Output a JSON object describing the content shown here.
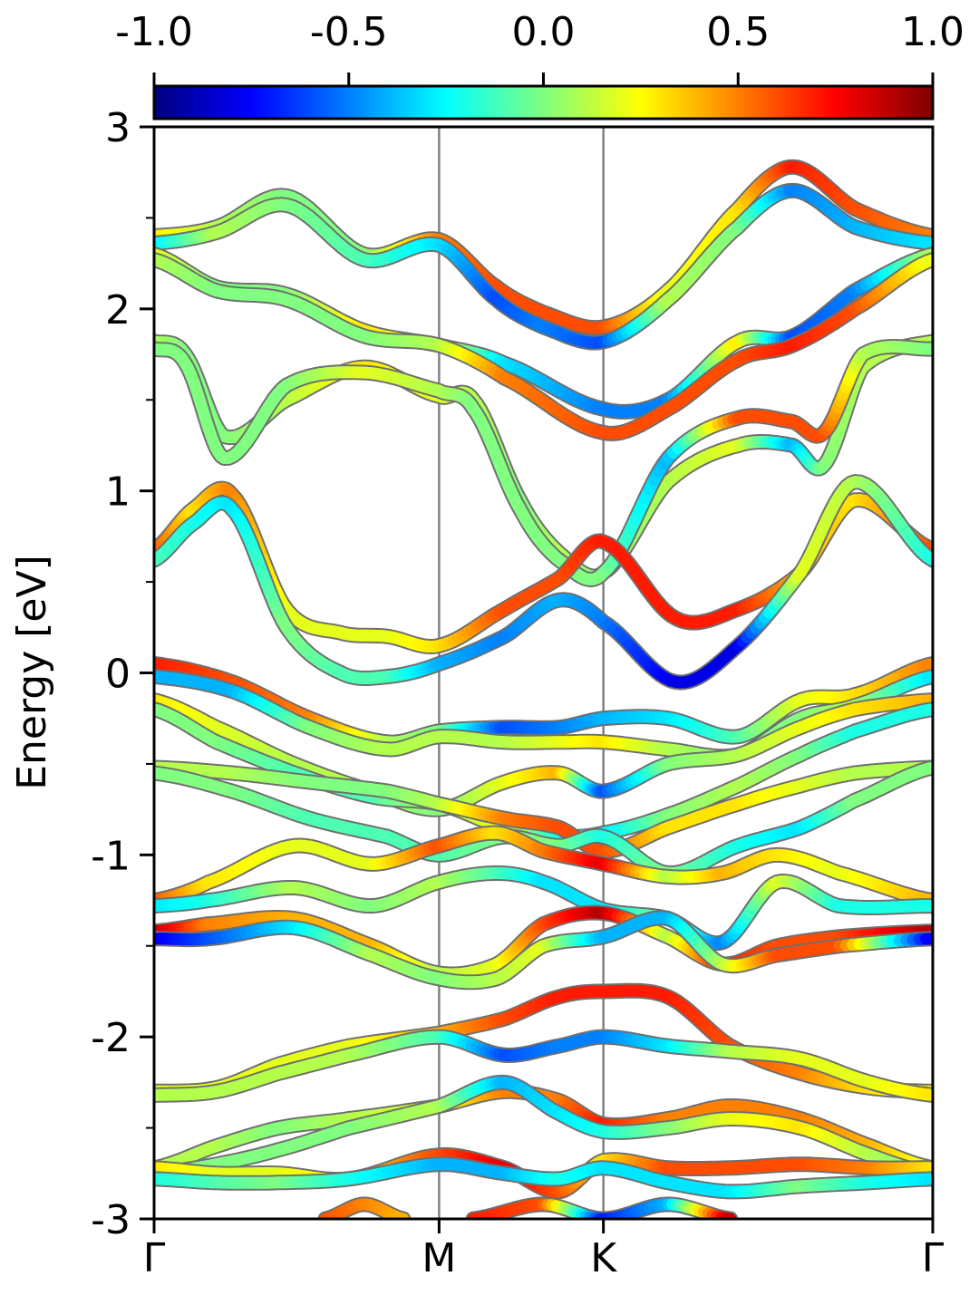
{
  "chart_data": {
    "type": "line",
    "title": "",
    "xlabel": "",
    "ylabel": "Energy [eV]",
    "ylim": [
      -3,
      3
    ],
    "y_ticks": [
      -3,
      -2,
      -1,
      0,
      1,
      2,
      3
    ],
    "x_ticks": [
      {
        "pos": 0.0,
        "label": "Γ"
      },
      {
        "pos": 0.366,
        "label": "M"
      },
      {
        "pos": 0.577,
        "label": "K"
      },
      {
        "pos": 1.0,
        "label": "Γ"
      }
    ],
    "colorbar": {
      "min": -1.0,
      "max": 1.0,
      "ticks": [
        -1.0,
        -0.5,
        0.0,
        0.5,
        1.0
      ],
      "tick_labels": [
        "-1.0",
        "-0.5",
        "0.0",
        "0.5",
        "1.0"
      ],
      "colormap": "jet"
    },
    "series": [
      {
        "x": [
          0,
          0.08,
          0.17,
          0.27,
          0.366,
          0.44,
          0.5,
          0.577,
          0.66,
          0.75,
          0.82,
          0.9,
          1.0
        ],
        "y": [
          2.4,
          2.45,
          2.62,
          2.3,
          2.38,
          2.12,
          1.98,
          1.9,
          2.1,
          2.55,
          2.78,
          2.55,
          2.4
        ],
        "c": [
          0.3,
          0.1,
          0.0,
          0.0,
          0.5,
          0.6,
          0.6,
          0.6,
          0.2,
          0.3,
          0.7,
          0.6,
          0.5
        ]
      },
      {
        "x": [
          0,
          0.08,
          0.17,
          0.27,
          0.366,
          0.44,
          0.5,
          0.577,
          0.66,
          0.75,
          0.82,
          0.9,
          1.0
        ],
        "y": [
          2.36,
          2.42,
          2.57,
          2.27,
          2.35,
          2.05,
          1.9,
          1.82,
          2.05,
          2.45,
          2.65,
          2.45,
          2.36
        ],
        "c": [
          -0.3,
          0.1,
          0.0,
          -0.1,
          -0.3,
          -0.6,
          -0.5,
          -0.6,
          0.1,
          0.0,
          -0.5,
          -0.4,
          -0.3
        ]
      },
      {
        "x": [
          0,
          0.08,
          0.17,
          0.27,
          0.366,
          0.45,
          0.577,
          0.66,
          0.75,
          0.82,
          0.9,
          1.0
        ],
        "y": [
          2.3,
          2.12,
          2.08,
          1.88,
          1.8,
          1.7,
          1.45,
          1.5,
          1.82,
          1.85,
          2.1,
          2.3
        ],
        "c": [
          0.2,
          0.0,
          0.0,
          0.3,
          0.2,
          -0.3,
          -0.5,
          -0.5,
          0.3,
          -0.6,
          -0.5,
          0.1
        ]
      },
      {
        "x": [
          0,
          0.08,
          0.17,
          0.27,
          0.366,
          0.45,
          0.577,
          0.66,
          0.75,
          0.82,
          0.9,
          1.0
        ],
        "y": [
          2.27,
          2.1,
          2.05,
          1.85,
          1.8,
          1.62,
          1.32,
          1.45,
          1.72,
          1.8,
          2.0,
          2.27
        ],
        "c": [
          0.1,
          0.0,
          0.0,
          0.0,
          0.1,
          0.5,
          0.6,
          0.6,
          0.6,
          0.7,
          0.6,
          0.2
        ]
      },
      {
        "x": [
          0,
          0.04,
          0.09,
          0.17,
          0.27,
          0.366,
          0.41,
          0.47,
          0.52,
          0.577,
          0.66,
          0.75,
          0.82,
          0.86,
          0.91,
          1.0
        ],
        "y": [
          1.82,
          1.75,
          1.3,
          1.5,
          1.68,
          1.52,
          1.5,
          0.95,
          0.66,
          0.55,
          1.05,
          1.25,
          1.25,
          1.14,
          1.68,
          1.82
        ],
        "c": [
          0.1,
          0.0,
          0.0,
          0.1,
          0.3,
          0.2,
          0.1,
          0.0,
          0.1,
          0.0,
          0.1,
          0.2,
          -0.4,
          0.0,
          0.1,
          0.1
        ]
      },
      {
        "x": [
          0,
          0.04,
          0.09,
          0.17,
          0.27,
          0.366,
          0.41,
          0.47,
          0.52,
          0.577,
          0.66,
          0.75,
          0.82,
          0.86,
          0.91,
          1.0
        ],
        "y": [
          1.78,
          1.7,
          1.18,
          1.58,
          1.65,
          1.55,
          1.45,
          0.9,
          0.62,
          0.55,
          1.18,
          1.4,
          1.38,
          1.32,
          1.75,
          1.78
        ],
        "c": [
          0.0,
          0.0,
          0.0,
          0.0,
          0.2,
          0.1,
          0.0,
          0.0,
          0.0,
          0.0,
          -0.4,
          0.6,
          0.6,
          0.6,
          0.1,
          0.0
        ]
      },
      {
        "x": [
          0,
          0.05,
          0.1,
          0.17,
          0.24,
          0.3,
          0.366,
          0.45,
          0.52,
          0.577,
          0.67,
          0.75,
          0.83,
          0.9,
          1.0
        ],
        "y": [
          0.68,
          0.9,
          0.98,
          0.35,
          0.22,
          0.2,
          0.15,
          0.35,
          0.52,
          0.72,
          0.3,
          0.35,
          0.55,
          0.95,
          0.68
        ],
        "c": [
          0.6,
          0.3,
          0.5,
          0.2,
          0.2,
          0.2,
          0.3,
          0.6,
          0.6,
          0.7,
          0.7,
          0.7,
          0.4,
          0.3,
          0.6
        ]
      },
      {
        "x": [
          0,
          0.05,
          0.1,
          0.17,
          0.24,
          0.3,
          0.366,
          0.45,
          0.52,
          0.577,
          0.67,
          0.75,
          0.83,
          0.9,
          1.0
        ],
        "y": [
          0.62,
          0.82,
          0.9,
          0.25,
          0.0,
          -0.02,
          0.05,
          0.2,
          0.4,
          0.28,
          -0.05,
          0.15,
          0.55,
          1.05,
          0.62
        ],
        "c": [
          -0.1,
          -0.2,
          -0.3,
          0.0,
          -0.1,
          -0.1,
          -0.4,
          -0.5,
          -0.4,
          -0.5,
          -0.8,
          -0.8,
          0.2,
          0.1,
          -0.2
        ]
      },
      {
        "x": [
          0,
          0.1,
          0.2,
          0.3,
          0.366,
          0.45,
          0.52,
          0.577,
          0.66,
          0.75,
          0.83,
          0.9,
          1.0
        ],
        "y": [
          0.05,
          -0.05,
          -0.25,
          -0.38,
          -0.32,
          -0.3,
          -0.3,
          -0.25,
          -0.25,
          -0.35,
          -0.15,
          -0.12,
          0.05
        ],
        "c": [
          0.7,
          0.6,
          0.5,
          0.1,
          0.0,
          -0.6,
          -0.5,
          -0.4,
          -0.3,
          -0.1,
          0.2,
          0.3,
          0.5
        ]
      },
      {
        "x": [
          0,
          0.1,
          0.2,
          0.3,
          0.366,
          0.45,
          0.52,
          0.577,
          0.66,
          0.75,
          0.83,
          0.9,
          1.0
        ],
        "y": [
          -0.02,
          -0.1,
          -0.3,
          -0.42,
          -0.35,
          -0.38,
          -0.38,
          -0.38,
          -0.42,
          -0.45,
          -0.25,
          -0.18,
          -0.02
        ],
        "c": [
          -0.4,
          -0.4,
          0.0,
          0.1,
          0.1,
          0.1,
          0.2,
          0.3,
          0.1,
          0.0,
          0.0,
          0.1,
          -0.3
        ]
      },
      {
        "x": [
          0,
          0.08,
          0.18,
          0.28,
          0.366,
          0.45,
          0.52,
          0.577,
          0.66,
          0.75,
          0.83,
          0.9,
          1.0
        ],
        "y": [
          -0.15,
          -0.3,
          -0.5,
          -0.65,
          -0.75,
          -0.6,
          -0.55,
          -0.65,
          -0.5,
          -0.45,
          -0.3,
          -0.2,
          -0.15
        ],
        "c": [
          0.3,
          0.2,
          0.1,
          0.1,
          0.0,
          0.2,
          0.4,
          -0.6,
          0.0,
          0.1,
          0.2,
          0.3,
          0.4
        ]
      },
      {
        "x": [
          0,
          0.08,
          0.18,
          0.28,
          0.366,
          0.45,
          0.52,
          0.577,
          0.66,
          0.75,
          0.83,
          0.9,
          1.0
        ],
        "y": [
          -0.2,
          -0.38,
          -0.55,
          -0.68,
          -0.72,
          -0.85,
          -0.9,
          -0.88,
          -0.78,
          -0.62,
          -0.45,
          -0.32,
          -0.2
        ],
        "c": [
          0.0,
          0.0,
          -0.1,
          -0.1,
          0.1,
          0.2,
          -0.2,
          -0.3,
          0.0,
          0.1,
          0.0,
          -0.2,
          -0.2
        ]
      },
      {
        "x": [
          0,
          0.1,
          0.2,
          0.3,
          0.366,
          0.45,
          0.52,
          0.577,
          0.66,
          0.75,
          0.83,
          0.9,
          1.0
        ],
        "y": [
          -0.52,
          -0.55,
          -0.6,
          -0.65,
          -0.72,
          -0.8,
          -0.85,
          -0.98,
          -0.85,
          -0.72,
          -0.62,
          -0.55,
          -0.52
        ],
        "c": [
          0.1,
          0.1,
          0.0,
          0.0,
          0.1,
          0.5,
          0.6,
          0.6,
          0.3,
          0.3,
          0.2,
          0.1,
          0.1
        ]
      },
      {
        "x": [
          0,
          0.1,
          0.2,
          0.3,
          0.366,
          0.45,
          0.52,
          0.577,
          0.66,
          0.75,
          0.83,
          0.9,
          1.0
        ],
        "y": [
          -0.55,
          -0.65,
          -0.8,
          -0.9,
          -1.0,
          -0.9,
          -0.95,
          -0.9,
          -1.1,
          -0.95,
          -0.85,
          -0.7,
          -0.52
        ],
        "c": [
          0.0,
          0.0,
          -0.1,
          -0.1,
          -0.1,
          0.0,
          0.0,
          -0.2,
          0.0,
          -0.2,
          -0.3,
          0.0,
          0.0
        ]
      },
      {
        "x": [
          0,
          0.07,
          0.18,
          0.28,
          0.366,
          0.44,
          0.5,
          0.577,
          0.66,
          0.73,
          0.8,
          0.88,
          1.0
        ],
        "y": [
          -1.25,
          -1.15,
          -0.95,
          -1.05,
          -0.95,
          -0.88,
          -0.98,
          -1.05,
          -1.12,
          -1.1,
          -1.0,
          -1.1,
          -1.25
        ],
        "c": [
          0.6,
          0.3,
          0.2,
          0.2,
          0.6,
          0.3,
          0.5,
          0.8,
          0.1,
          0.4,
          0.3,
          0.2,
          0.4
        ]
      },
      {
        "x": [
          0,
          0.07,
          0.18,
          0.28,
          0.366,
          0.44,
          0.5,
          0.577,
          0.66,
          0.73,
          0.8,
          0.88,
          1.0
        ],
        "y": [
          -1.28,
          -1.25,
          -1.18,
          -1.28,
          -1.15,
          -1.1,
          -1.15,
          -1.3,
          -1.35,
          -1.48,
          -1.15,
          -1.28,
          -1.28
        ],
        "c": [
          -0.3,
          -0.2,
          0.1,
          0.0,
          0.1,
          -0.1,
          -0.3,
          -0.3,
          0.0,
          -0.5,
          0.2,
          -0.2,
          -0.2
        ]
      },
      {
        "x": [
          0,
          0.07,
          0.18,
          0.28,
          0.366,
          0.44,
          0.5,
          0.577,
          0.66,
          0.73,
          0.8,
          0.88,
          1.0
        ],
        "y": [
          -1.42,
          -1.38,
          -1.35,
          -1.5,
          -1.65,
          -1.6,
          -1.38,
          -1.32,
          -1.45,
          -1.6,
          -1.5,
          -1.45,
          -1.42
        ],
        "c": [
          0.9,
          0.5,
          0.4,
          0.4,
          0.1,
          0.2,
          0.6,
          0.9,
          0.1,
          0.7,
          0.6,
          0.6,
          0.9
        ]
      },
      {
        "x": [
          0,
          0.07,
          0.18,
          0.28,
          0.366,
          0.44,
          0.5,
          0.577,
          0.66,
          0.73,
          0.8,
          0.88,
          1.0
        ],
        "y": [
          -1.46,
          -1.46,
          -1.4,
          -1.55,
          -1.68,
          -1.68,
          -1.5,
          -1.45,
          -1.35,
          -1.6,
          -1.55,
          -1.5,
          -1.46
        ],
        "c": [
          -0.8,
          -0.6,
          -0.3,
          0.1,
          0.0,
          0.1,
          0.2,
          -0.4,
          -0.4,
          0.1,
          0.6,
          0.6,
          -0.8
        ]
      },
      {
        "x": [
          0,
          0.08,
          0.16,
          0.25,
          0.366,
          0.45,
          0.52,
          0.577,
          0.66,
          0.74,
          0.83,
          0.92,
          1.0
        ],
        "y": [
          -2.3,
          -2.28,
          -2.15,
          -2.05,
          -1.98,
          -1.9,
          -1.78,
          -1.75,
          -1.78,
          -2.05,
          -2.2,
          -2.28,
          -2.3
        ],
        "c": [
          0.2,
          0.2,
          0.2,
          0.2,
          0.4,
          0.6,
          0.7,
          0.7,
          0.7,
          0.6,
          0.5,
          0.3,
          0.3
        ]
      },
      {
        "x": [
          0,
          0.08,
          0.16,
          0.25,
          0.366,
          0.45,
          0.52,
          0.577,
          0.66,
          0.74,
          0.83,
          0.92,
          1.0
        ],
        "y": [
          -2.32,
          -2.3,
          -2.2,
          -2.1,
          -2.0,
          -2.1,
          -2.05,
          -2.0,
          -2.05,
          -2.08,
          -2.12,
          -2.25,
          -2.32
        ],
        "c": [
          0.1,
          0.1,
          0.1,
          0.1,
          -0.1,
          -0.6,
          -0.5,
          -0.5,
          -0.3,
          0.1,
          0.2,
          0.2,
          0.3
        ]
      },
      {
        "x": [
          0,
          0.08,
          0.16,
          0.25,
          0.366,
          0.45,
          0.52,
          0.577,
          0.66,
          0.74,
          0.83,
          0.92,
          1.0
        ],
        "y": [
          -2.72,
          -2.6,
          -2.5,
          -2.45,
          -2.38,
          -2.3,
          -2.35,
          -2.48,
          -2.45,
          -2.38,
          -2.45,
          -2.6,
          -2.72
        ],
        "c": [
          0.1,
          0.1,
          0.0,
          0.1,
          0.2,
          0.5,
          0.5,
          0.7,
          0.5,
          0.5,
          0.5,
          0.4,
          0.2
        ]
      },
      {
        "x": [
          0,
          0.08,
          0.16,
          0.25,
          0.366,
          0.45,
          0.52,
          0.577,
          0.66,
          0.74,
          0.83,
          0.92,
          1.0
        ],
        "y": [
          -2.75,
          -2.7,
          -2.62,
          -2.5,
          -2.38,
          -2.25,
          -2.42,
          -2.52,
          -2.5,
          -2.45,
          -2.5,
          -2.65,
          -2.75
        ],
        "c": [
          0.0,
          0.0,
          0.0,
          0.0,
          0.1,
          -0.4,
          -0.3,
          -0.2,
          0.0,
          0.2,
          0.3,
          0.1,
          0.0
        ]
      },
      {
        "x": [
          0,
          0.08,
          0.16,
          0.25,
          0.366,
          0.45,
          0.52,
          0.577,
          0.66,
          0.74,
          0.83,
          0.92,
          1.0
        ],
        "y": [
          -2.72,
          -2.75,
          -2.75,
          -2.78,
          -2.65,
          -2.72,
          -2.85,
          -2.68,
          -2.72,
          -2.72,
          -2.7,
          -2.72,
          -2.72
        ],
        "c": [
          0.3,
          0.2,
          0.2,
          0.3,
          0.6,
          0.8,
          0.6,
          0.3,
          0.6,
          0.6,
          0.6,
          0.5,
          0.3
        ]
      },
      {
        "x": [
          0,
          0.08,
          0.16,
          0.25,
          0.366,
          0.45,
          0.52,
          0.577,
          0.66,
          0.74,
          0.83,
          0.92,
          1.0
        ],
        "y": [
          -2.78,
          -2.8,
          -2.8,
          -2.78,
          -2.7,
          -2.75,
          -2.78,
          -2.72,
          -2.8,
          -2.85,
          -2.82,
          -2.8,
          -2.78
        ],
        "c": [
          -0.2,
          -0.1,
          0.0,
          -0.2,
          -0.4,
          -0.4,
          -0.2,
          -0.3,
          -0.3,
          -0.3,
          0.0,
          -0.2,
          -0.3
        ]
      },
      {
        "x": [
          0.22,
          0.27,
          0.32
        ],
        "y": [
          -3.0,
          -2.92,
          -3.0
        ],
        "c": [
          0.6,
          0.5,
          0.4
        ]
      },
      {
        "x": [
          0.41,
          0.5,
          0.577,
          0.66,
          0.74
        ],
        "y": [
          -3.0,
          -2.92,
          -3.0,
          -2.92,
          -3.0
        ],
        "c": [
          0.7,
          0.6,
          -0.7,
          -0.4,
          0.9
        ]
      }
    ]
  }
}
